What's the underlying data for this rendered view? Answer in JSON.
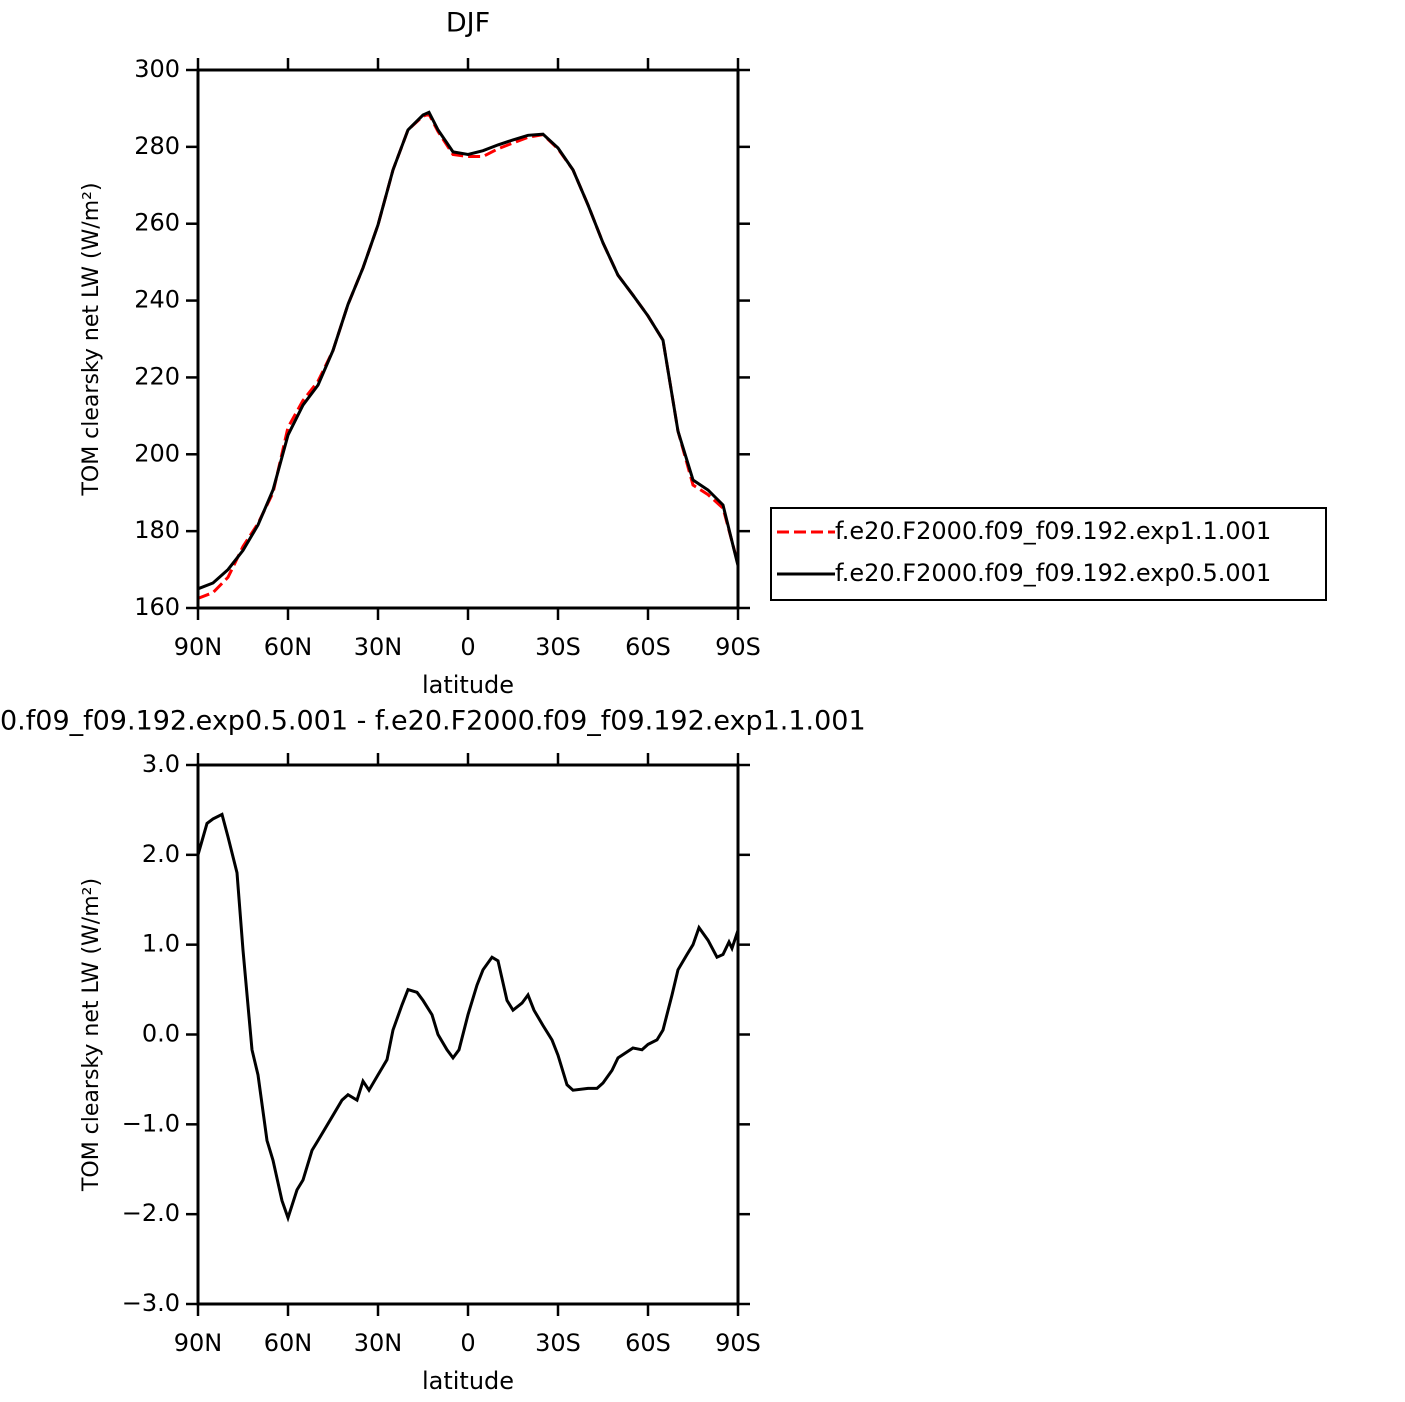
{
  "chart_data": [
    {
      "type": "line",
      "title": "DJF",
      "xlabel": "latitude",
      "ylabel": "TOM clearsky net LW (W/m²)",
      "x": [
        90,
        85,
        80,
        75,
        70,
        65,
        60,
        55,
        50,
        45,
        40,
        35,
        30,
        25,
        20,
        15,
        13,
        10,
        5,
        0,
        -5,
        -10,
        -15,
        -20,
        -25,
        -30,
        -35,
        -40,
        -45,
        -50,
        -55,
        -60,
        -65,
        -70,
        -75,
        -80,
        -85,
        -90
      ],
      "series": [
        {
          "name": "f.e20.F2000.f09_f09.192.exp1.1.001",
          "color": "#ff0000",
          "dash": true,
          "values": [
            162.5,
            164,
            168,
            176,
            182,
            190,
            207,
            214,
            219,
            227,
            239,
            248.5,
            259.7,
            274,
            284.4,
            288,
            288.5,
            284,
            278,
            277.5,
            277.5,
            279.5,
            281,
            282.5,
            283.2,
            279.5,
            274,
            264.9,
            255,
            246.6,
            241.4,
            236,
            229.7,
            206,
            192,
            189.5,
            186,
            171.5
          ]
        },
        {
          "name": "f.e20.F2000.f09_f09.192.exp0.5.001",
          "color": "#000000",
          "dash": false,
          "values": [
            165,
            166.5,
            170,
            175,
            181.6,
            190.7,
            205,
            212.8,
            218,
            227,
            239,
            248.5,
            259.7,
            274,
            284.4,
            288.3,
            289,
            284.4,
            278.7,
            278,
            279,
            280.5,
            281.8,
            283,
            283.3,
            279.7,
            274,
            264.9,
            255,
            246.6,
            241.4,
            236,
            229.7,
            206,
            193.3,
            190.7,
            186.8,
            171
          ]
        }
      ],
      "xlim": [
        90,
        -90
      ],
      "xticks": [
        {
          "value": 90,
          "label": "90N"
        },
        {
          "value": 60,
          "label": "60N"
        },
        {
          "value": 30,
          "label": "30N"
        },
        0,
        {
          "value": -30,
          "label": "30S"
        },
        {
          "value": -60,
          "label": "60S"
        },
        {
          "value": -90,
          "label": "90S"
        }
      ],
      "ylim": [
        160,
        300
      ],
      "yticks": [
        160,
        180,
        200,
        220,
        240,
        260,
        280,
        300
      ],
      "legend": "right"
    },
    {
      "type": "line",
      "title": "0.f09_f09.192.exp0.5.001 - f.e20.F2000.f09_f09.192.exp1.1.001",
      "xlabel": "latitude",
      "ylabel": "TOM clearsky net LW (W/m²)",
      "x": [
        90,
        87,
        85,
        82,
        80,
        77,
        75,
        72,
        70,
        67,
        65,
        62,
        60,
        57,
        55,
        52,
        50,
        45,
        42,
        40,
        37,
        35,
        33,
        30,
        27,
        25,
        22,
        20,
        17,
        15,
        12,
        10,
        7,
        5,
        3,
        0,
        -3,
        -5,
        -8,
        -10,
        -13,
        -15,
        -18,
        -20,
        -22,
        -25,
        -28,
        -30,
        -33,
        -35,
        -40,
        -43,
        -45,
        -48,
        -50,
        -55,
        -58,
        -60,
        -63,
        -65,
        -68,
        -70,
        -73,
        -75,
        -77,
        -80,
        -83,
        -85,
        -87,
        -88,
        -90
      ],
      "series": [
        {
          "color": "#000000",
          "dash": false,
          "values": [
            2.0,
            2.35,
            2.4,
            2.45,
            2.2,
            1.8,
            0.94,
            -0.17,
            -0.45,
            -1.18,
            -1.4,
            -1.85,
            -2.04,
            -1.73,
            -1.62,
            -1.29,
            -1.18,
            -0.9,
            -0.73,
            -0.67,
            -0.73,
            -0.52,
            -0.62,
            -0.45,
            -0.28,
            0.05,
            0.33,
            0.5,
            0.47,
            0.38,
            0.22,
            0.0,
            -0.17,
            -0.26,
            -0.17,
            0.22,
            0.55,
            0.72,
            0.86,
            0.82,
            0.38,
            0.27,
            0.35,
            0.44,
            0.27,
            0.1,
            -0.06,
            -0.23,
            -0.56,
            -0.62,
            -0.6,
            -0.6,
            -0.54,
            -0.4,
            -0.26,
            -0.15,
            -0.17,
            -0.11,
            -0.06,
            0.05,
            0.44,
            0.72,
            0.89,
            1.0,
            1.19,
            1.05,
            0.86,
            0.89,
            1.03,
            0.96,
            1.16
          ]
        }
      ],
      "xlim": [
        90,
        -90
      ],
      "xticks": [
        {
          "value": 90,
          "label": "90N"
        },
        {
          "value": 60,
          "label": "60N"
        },
        {
          "value": 30,
          "label": "30N"
        },
        0,
        {
          "value": -30,
          "label": "30S"
        },
        {
          "value": -60,
          "label": "60S"
        },
        {
          "value": -90,
          "label": "90S"
        }
      ],
      "ylim": [
        -3,
        3
      ],
      "yticks": [
        {
          "value": -3,
          "label": "−3.0"
        },
        {
          "value": -2,
          "label": "−2.0"
        },
        {
          "value": -1,
          "label": "−1.0"
        },
        {
          "value": 0,
          "label": "0.0"
        },
        {
          "value": 1,
          "label": "1.0"
        },
        {
          "value": 2,
          "label": "2.0"
        },
        {
          "value": 3,
          "label": "3.0"
        }
      ]
    }
  ]
}
